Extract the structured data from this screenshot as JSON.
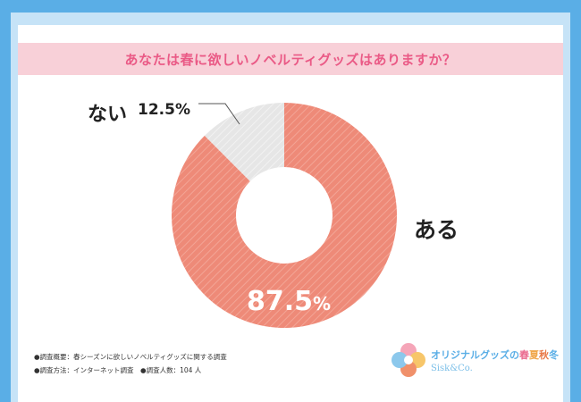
{
  "title": "あなたは春に欲しいノベルティグッズはありますか？",
  "chart_data": {
    "type": "pie",
    "donut": true,
    "slices": [
      {
        "label": "ある",
        "value": 87.5,
        "value_label": "87.5",
        "unit": "%",
        "color": "#ee8a78"
      },
      {
        "label": "ない",
        "value": 12.5,
        "value_label": "12.5%",
        "color": "#e6e6e6"
      }
    ]
  },
  "notes": {
    "line1": "●調査概要：春シーズンに欲しいノベルティグッズに関する調査",
    "line2": "●調査方法：インターネット調査　●調査人数：104 人"
  },
  "logo": {
    "title_prefix": "オリジナルグッズの",
    "season1": "春",
    "season2": "夏",
    "season3": "秋",
    "season4": "冬",
    "sub": "Sisk&Co."
  },
  "colors": {
    "frame": "#5aaee6",
    "title_bg": "#f8d0d8",
    "title_text": "#ea5a86",
    "slice_main": "#ee8a78",
    "slice_minor": "#e6e6e6"
  }
}
